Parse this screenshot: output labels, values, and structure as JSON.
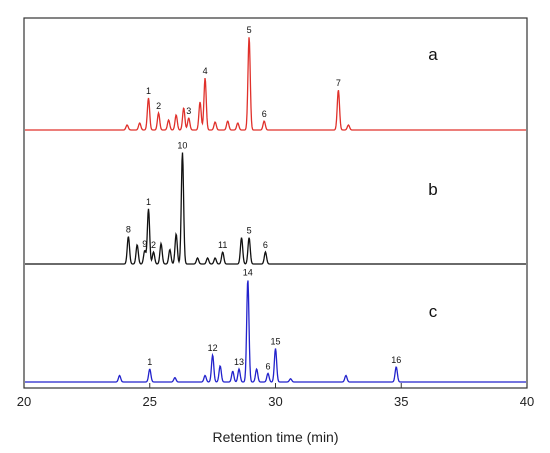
{
  "chart_data": {
    "type": "line",
    "xlabel": "Retention time (min)",
    "ylabel": "",
    "xlim": [
      20,
      40
    ],
    "xticks": [
      "20",
      "25",
      "30",
      "35",
      "40"
    ],
    "grid": false,
    "legend": "none",
    "series": [
      {
        "name": "a",
        "color": "#e0302a",
        "peaks": [
          {
            "x": 24.1,
            "h": 0.05
          },
          {
            "x": 24.6,
            "h": 0.07
          },
          {
            "x": 24.95,
            "h": 0.32,
            "label": "1"
          },
          {
            "x": 25.35,
            "h": 0.17,
            "label": "2"
          },
          {
            "x": 25.75,
            "h": 0.1
          },
          {
            "x": 26.05,
            "h": 0.15
          },
          {
            "x": 26.35,
            "h": 0.22
          },
          {
            "x": 26.55,
            "h": 0.12,
            "label": "3"
          },
          {
            "x": 27.0,
            "h": 0.28
          },
          {
            "x": 27.2,
            "h": 0.52,
            "label": "4"
          },
          {
            "x": 27.6,
            "h": 0.08
          },
          {
            "x": 28.1,
            "h": 0.09
          },
          {
            "x": 28.5,
            "h": 0.07
          },
          {
            "x": 28.95,
            "h": 0.93,
            "label": "5"
          },
          {
            "x": 29.55,
            "h": 0.09,
            "label": "6"
          },
          {
            "x": 32.5,
            "h": 0.4,
            "label": "7"
          },
          {
            "x": 32.9,
            "h": 0.05
          }
        ]
      },
      {
        "name": "b",
        "color": "#111111",
        "peaks": [
          {
            "x": 24.15,
            "h": 0.23,
            "label": "8"
          },
          {
            "x": 24.5,
            "h": 0.16
          },
          {
            "x": 24.8,
            "h": 0.11,
            "label": "9"
          },
          {
            "x": 24.95,
            "h": 0.46,
            "label": "1"
          },
          {
            "x": 25.15,
            "h": 0.1,
            "label": "2"
          },
          {
            "x": 25.45,
            "h": 0.17
          },
          {
            "x": 25.8,
            "h": 0.12
          },
          {
            "x": 26.05,
            "h": 0.25
          },
          {
            "x": 26.3,
            "h": 0.93,
            "label": "10"
          },
          {
            "x": 26.9,
            "h": 0.05
          },
          {
            "x": 27.3,
            "h": 0.05
          },
          {
            "x": 27.6,
            "h": 0.05
          },
          {
            "x": 27.9,
            "h": 0.1,
            "label": "11"
          },
          {
            "x": 28.65,
            "h": 0.22
          },
          {
            "x": 28.95,
            "h": 0.22,
            "label": "5"
          },
          {
            "x": 29.6,
            "h": 0.1,
            "label": "6"
          }
        ]
      },
      {
        "name": "c",
        "color": "#2222cc",
        "peaks": [
          {
            "x": 23.8,
            "h": 0.06
          },
          {
            "x": 25.0,
            "h": 0.12,
            "label": "1"
          },
          {
            "x": 26.0,
            "h": 0.04
          },
          {
            "x": 27.2,
            "h": 0.06
          },
          {
            "x": 27.5,
            "h": 0.25,
            "label": "12"
          },
          {
            "x": 27.8,
            "h": 0.15
          },
          {
            "x": 28.3,
            "h": 0.1
          },
          {
            "x": 28.55,
            "h": 0.12,
            "label": "13"
          },
          {
            "x": 28.9,
            "h": 0.95,
            "label": "14"
          },
          {
            "x": 29.25,
            "h": 0.12
          },
          {
            "x": 29.7,
            "h": 0.08,
            "label": "6"
          },
          {
            "x": 30.0,
            "h": 0.31,
            "label": "15"
          },
          {
            "x": 30.6,
            "h": 0.03
          },
          {
            "x": 32.8,
            "h": 0.06
          },
          {
            "x": 34.8,
            "h": 0.14,
            "label": "16"
          }
        ]
      }
    ]
  }
}
